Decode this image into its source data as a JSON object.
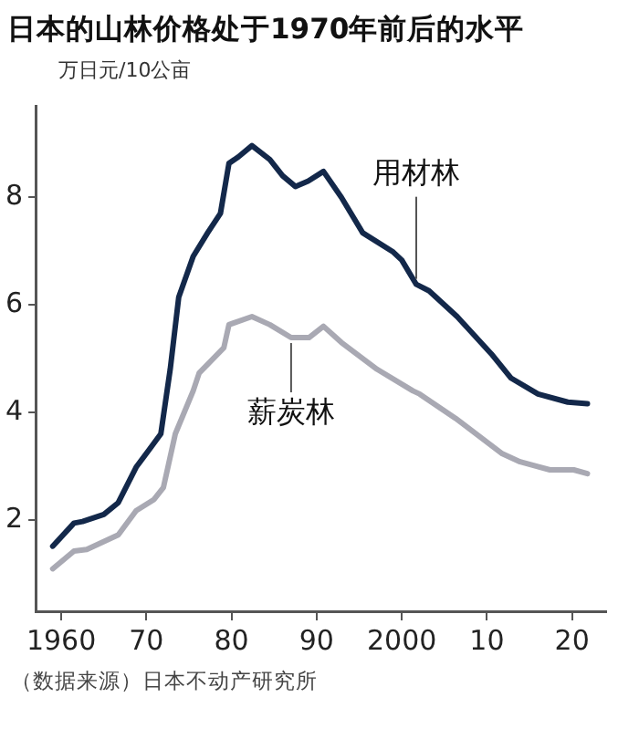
{
  "chart_data": {
    "type": "line",
    "title": "日本的山林价格处于1970年前后的水平",
    "ylabel": "万日元/10公亩",
    "annotations": [
      "（数据来源）日本不动产研究所"
    ],
    "xlim": [
      1957,
      2024
    ],
    "xticks": [
      {
        "value": 1960,
        "label": "1960"
      },
      {
        "value": 1970,
        "label": "70"
      },
      {
        "value": 1980,
        "label": "80"
      },
      {
        "value": 1990,
        "label": "90"
      },
      {
        "value": 2000,
        "label": "2000"
      },
      {
        "value": 2010,
        "label": "10"
      },
      {
        "value": 2020,
        "label": "20"
      }
    ],
    "ylim": [
      0.3,
      9.7
    ],
    "yticks": [
      2,
      4,
      6,
      8
    ],
    "grid": false,
    "legend": false,
    "marker": "none",
    "line_style": "solid",
    "series": [
      {
        "name": "用材林",
        "color": "#13284a",
        "x": [
          1959,
          1961.5,
          1962.5,
          1965,
          1966.7,
          1968.8,
          1970.3,
          1971.7,
          1972.8,
          1973.8,
          1975.5,
          1977.2,
          1978.7,
          1979.7,
          1980.8,
          1982.4,
          1984.5,
          1986,
          1987.5,
          1989,
          1990.8,
          1992.9,
          1995.4,
          1999,
          2000,
          2001.7,
          2003.2,
          2006.5,
          2010.5,
          2012.8,
          2016,
          2019.5,
          2021.8
        ],
        "values": [
          1.51,
          1.94,
          1.97,
          2.1,
          2.32,
          2.98,
          3.3,
          3.6,
          4.8,
          6.14,
          6.9,
          7.34,
          7.7,
          8.63,
          8.75,
          8.96,
          8.7,
          8.4,
          8.2,
          8.3,
          8.48,
          8.0,
          7.34,
          6.98,
          6.83,
          6.38,
          6.26,
          5.78,
          5.09,
          4.64,
          4.34,
          4.19,
          4.16
        ]
      },
      {
        "name": "薪炭林",
        "color": "#a9a9b3",
        "x": [
          1959,
          1961.5,
          1963,
          1966.7,
          1968.8,
          1970.9,
          1972,
          1973.4,
          1975.5,
          1976.2,
          1979.1,
          1979.7,
          1982.4,
          1984.5,
          1987,
          1989.1,
          1990.8,
          1992.9,
          1997.1,
          2001.3,
          2002.1,
          2006.3,
          2011.8,
          2013.9,
          2017.4,
          2020.2,
          2021.8
        ],
        "values": [
          1.09,
          1.42,
          1.45,
          1.72,
          2.17,
          2.38,
          2.6,
          3.6,
          4.4,
          4.73,
          5.2,
          5.63,
          5.78,
          5.63,
          5.39,
          5.39,
          5.6,
          5.3,
          4.8,
          4.4,
          4.34,
          3.89,
          3.23,
          3.08,
          2.93,
          2.93,
          2.86
        ]
      }
    ]
  }
}
